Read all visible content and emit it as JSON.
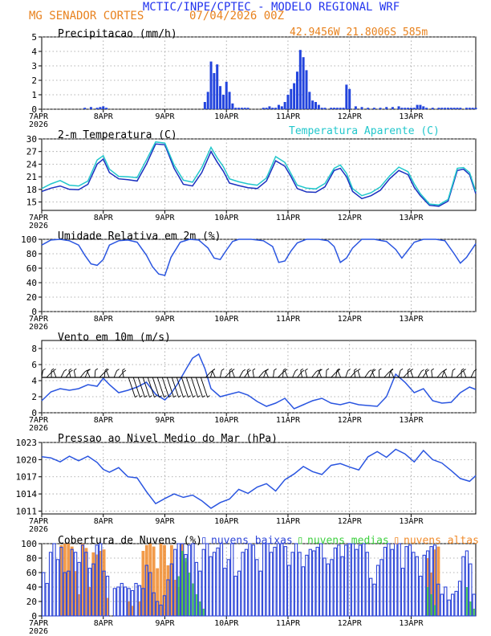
{
  "header": {
    "title": "MCTIC/INPE/CPTEC - MODELO REGIONAL WRF",
    "location": "MG SENADOR CORTES",
    "run": "07/04/2026 00Z",
    "coords": "42.9456W 21.8006S 585m"
  },
  "colors": {
    "precip": "#2244dd",
    "temp": "#1a2fbf",
    "apparent": "#22c7cc",
    "humidity": "#2a55e0",
    "wind": "#2a55e0",
    "pressure": "#2a55e0",
    "cloud_low": "#2d45d8",
    "cloud_mid": "#3fd040",
    "cloud_high": "#f08a2a",
    "title_blue": "#2233ee",
    "title_orange": "#e8821e",
    "grid": "#9a9a9a"
  },
  "x_axis": {
    "labels": [
      "7APR",
      "8APR",
      "9APR",
      "10APR",
      "11APR",
      "12APR",
      "13APR"
    ],
    "year": "2026"
  },
  "chart_data": [
    {
      "type": "bar",
      "title": "Precipitacao (mm/h)",
      "yticks": [
        "0",
        "1",
        "2",
        "3",
        "4",
        "5"
      ],
      "ylim": [
        0,
        5
      ],
      "x": [
        0.7,
        0.8,
        0.9,
        0.95,
        1.0,
        1.05,
        2.65,
        2.7,
        2.75,
        2.8,
        2.85,
        2.9,
        2.95,
        3.0,
        3.05,
        3.1,
        3.15,
        3.2,
        3.25,
        3.3,
        3.35,
        3.6,
        3.65,
        3.7,
        3.75,
        3.8,
        3.85,
        3.9,
        3.95,
        4.0,
        4.05,
        4.1,
        4.15,
        4.2,
        4.25,
        4.3,
        4.35,
        4.4,
        4.45,
        4.5,
        4.55,
        4.6,
        4.7,
        4.75,
        4.8,
        4.85,
        4.9,
        4.95,
        5.0,
        5.1,
        5.2,
        5.3,
        5.4,
        5.5,
        5.6,
        5.7,
        5.8,
        5.85,
        5.9,
        5.95,
        6.0,
        6.05,
        6.1,
        6.15,
        6.2,
        6.25,
        6.35,
        6.45,
        6.5,
        6.55,
        6.6,
        6.65,
        6.7,
        6.75,
        6.8,
        6.9,
        6.95,
        7.0,
        7.05
      ],
      "values": [
        0.1,
        0.15,
        0.1,
        0.15,
        0.2,
        0.1,
        0.5,
        1.2,
        3.3,
        2.5,
        3.1,
        1.6,
        1.0,
        1.9,
        1.2,
        0.4,
        0.1,
        0.1,
        0.1,
        0.1,
        0.1,
        0.1,
        0.1,
        0.2,
        0.1,
        0.1,
        0.3,
        0.2,
        0.5,
        1.0,
        1.4,
        1.8,
        2.6,
        4.1,
        3.6,
        2.7,
        1.2,
        0.6,
        0.5,
        0.3,
        0.1,
        0.1,
        0.1,
        0.1,
        0.1,
        0.1,
        0.1,
        1.7,
        1.4,
        0.2,
        0.15,
        0.1,
        0.1,
        0.1,
        0.15,
        0.15,
        0.2,
        0.1,
        0.1,
        0.1,
        0.1,
        0.1,
        0.3,
        0.3,
        0.2,
        0.1,
        0.1,
        0.1,
        0.1,
        0.1,
        0.1,
        0.1,
        0.1,
        0.1,
        0.1,
        0.1,
        0.1,
        0.1,
        0.1
      ],
      "xlabel": "",
      "ylabel": ""
    },
    {
      "type": "line",
      "title": "2-m Temperatura (C)",
      "legend": "Temperatura Aparente (C)",
      "yticks": [
        "15",
        "18",
        "21",
        "24",
        "27",
        "30"
      ],
      "ylim": [
        13,
        30
      ],
      "x": [
        0,
        0.15,
        0.3,
        0.45,
        0.6,
        0.75,
        0.9,
        1.0,
        1.1,
        1.25,
        1.4,
        1.55,
        1.7,
        1.85,
        2.0,
        2.15,
        2.3,
        2.45,
        2.6,
        2.75,
        2.85,
        2.95,
        3.05,
        3.2,
        3.35,
        3.5,
        3.65,
        3.8,
        3.95,
        4.05,
        4.15,
        4.3,
        4.45,
        4.6,
        4.75,
        4.85,
        4.95,
        5.05,
        5.2,
        5.35,
        5.5,
        5.65,
        5.8,
        5.95,
        6.05,
        6.15,
        6.3,
        6.45,
        6.6,
        6.75,
        6.85,
        6.95,
        7.05
      ],
      "series": [
        {
          "name": "",
          "values": [
            17.5,
            18.3,
            18.8,
            18.0,
            17.9,
            19.2,
            24.0,
            25.2,
            22.0,
            20.5,
            20.3,
            20.0,
            24.0,
            28.8,
            28.6,
            23.0,
            19.2,
            18.8,
            22.0,
            27.0,
            24.5,
            22.3,
            19.5,
            18.9,
            18.4,
            18.2,
            20.0,
            24.8,
            23.5,
            21.0,
            18.2,
            17.4,
            17.3,
            18.6,
            22.5,
            23.0,
            21.0,
            17.5,
            15.8,
            16.5,
            17.8,
            20.5,
            22.5,
            21.5,
            18.5,
            16.5,
            14.2,
            14.0,
            15.2,
            22.5,
            22.8,
            21.5,
            17.0
          ]
        },
        {
          "name": "Temperatura Aparente (C)",
          "values": [
            18.2,
            19.3,
            20.1,
            19.0,
            18.8,
            20.0,
            25.0,
            26.0,
            22.8,
            21.1,
            21.0,
            20.8,
            25.0,
            29.3,
            29.0,
            23.8,
            20.2,
            19.7,
            23.2,
            28.0,
            25.5,
            23.4,
            20.5,
            19.8,
            19.3,
            19.0,
            20.7,
            25.8,
            24.4,
            21.7,
            19.0,
            18.3,
            18.1,
            19.4,
            23.0,
            23.8,
            21.8,
            18.2,
            16.5,
            17.2,
            18.6,
            21.2,
            23.3,
            22.2,
            19.3,
            17.0,
            14.5,
            14.3,
            15.6,
            23.0,
            23.2,
            22.0,
            17.5
          ]
        }
      ],
      "xlabel": "",
      "ylabel": ""
    },
    {
      "type": "line",
      "title": "Umidade Relativa em 2m (%)",
      "yticks": [
        "0",
        "20",
        "40",
        "60",
        "80",
        "100"
      ],
      "ylim": [
        0,
        100
      ],
      "x": [
        0,
        0.15,
        0.3,
        0.45,
        0.6,
        0.7,
        0.8,
        0.9,
        1.0,
        1.1,
        1.25,
        1.4,
        1.55,
        1.7,
        1.8,
        1.9,
        2.0,
        2.1,
        2.25,
        2.4,
        2.55,
        2.7,
        2.8,
        2.9,
        3.0,
        3.1,
        3.2,
        3.4,
        3.6,
        3.75,
        3.85,
        3.95,
        4.05,
        4.15,
        4.3,
        4.5,
        4.65,
        4.75,
        4.85,
        4.95,
        5.05,
        5.2,
        5.4,
        5.6,
        5.75,
        5.85,
        5.95,
        6.05,
        6.2,
        6.4,
        6.55,
        6.7,
        6.8,
        6.9,
        7.05
      ],
      "series": [
        {
          "name": "",
          "values": [
            92,
            99,
            100,
            98,
            92,
            78,
            66,
            64,
            72,
            92,
            98,
            99,
            96,
            78,
            62,
            52,
            50,
            75,
            96,
            100,
            99,
            88,
            74,
            72,
            85,
            97,
            100,
            100,
            98,
            90,
            68,
            70,
            84,
            95,
            100,
            100,
            98,
            90,
            68,
            74,
            88,
            100,
            100,
            97,
            86,
            74,
            85,
            96,
            100,
            100,
            98,
            80,
            67,
            75,
            94
          ]
        }
      ],
      "xlabel": "",
      "ylabel": ""
    },
    {
      "type": "line",
      "title": "Vento em 10m (m/s)",
      "yticks": [
        "0",
        "2",
        "4",
        "6",
        "8"
      ],
      "ylim": [
        0,
        9
      ],
      "x": [
        0,
        0.15,
        0.3,
        0.45,
        0.6,
        0.75,
        0.9,
        1.0,
        1.1,
        1.25,
        1.4,
        1.55,
        1.7,
        1.85,
        2.0,
        2.1,
        2.2,
        2.35,
        2.45,
        2.55,
        2.65,
        2.75,
        2.9,
        3.05,
        3.2,
        3.35,
        3.5,
        3.65,
        3.8,
        3.95,
        4.1,
        4.25,
        4.4,
        4.55,
        4.7,
        4.85,
        5.0,
        5.15,
        5.3,
        5.45,
        5.6,
        5.75,
        5.9,
        6.05,
        6.2,
        6.35,
        6.5,
        6.65,
        6.8,
        6.95,
        7.05
      ],
      "series": [
        {
          "name": "",
          "values": [
            1.5,
            2.6,
            3.0,
            2.8,
            3.0,
            3.5,
            3.3,
            4.3,
            3.5,
            2.5,
            2.8,
            3.2,
            3.8,
            2.3,
            1.6,
            2.4,
            3.5,
            5.5,
            6.8,
            7.3,
            5.5,
            3.0,
            2.0,
            2.3,
            2.6,
            2.2,
            1.4,
            0.8,
            1.2,
            1.8,
            0.5,
            1.0,
            1.5,
            1.8,
            1.2,
            1.0,
            1.3,
            1.0,
            0.9,
            0.8,
            2.0,
            4.8,
            3.8,
            2.5,
            3.0,
            1.5,
            1.2,
            1.3,
            2.5,
            3.2,
            2.9
          ]
        }
      ],
      "xlabel": "",
      "ylabel": ""
    },
    {
      "type": "line",
      "title": "Pressao ao Nivel Medio do Mar (hPa)",
      "yticks": [
        "1011",
        "1014",
        "1017",
        "1020",
        "1023"
      ],
      "ylim": [
        1010.5,
        1023
      ],
      "x": [
        0,
        0.15,
        0.3,
        0.45,
        0.6,
        0.75,
        0.9,
        1.0,
        1.1,
        1.25,
        1.4,
        1.55,
        1.7,
        1.85,
        2.0,
        2.15,
        2.3,
        2.45,
        2.6,
        2.75,
        2.9,
        3.05,
        3.2,
        3.35,
        3.5,
        3.65,
        3.8,
        3.95,
        4.1,
        4.25,
        4.4,
        4.55,
        4.7,
        4.85,
        5.0,
        5.15,
        5.3,
        5.45,
        5.6,
        5.75,
        5.9,
        6.05,
        6.2,
        6.35,
        6.5,
        6.65,
        6.8,
        6.95,
        7.05
      ],
      "series": [
        {
          "name": "",
          "values": [
            1020.5,
            1020.3,
            1019.6,
            1020.6,
            1019.8,
            1020.6,
            1019.5,
            1018.3,
            1017.8,
            1018.6,
            1017.0,
            1016.8,
            1014.4,
            1012.3,
            1013.2,
            1014.0,
            1013.4,
            1013.8,
            1012.8,
            1011.5,
            1012.5,
            1013.1,
            1014.8,
            1014.1,
            1015.2,
            1015.8,
            1014.5,
            1016.5,
            1017.5,
            1018.8,
            1017.9,
            1017.4,
            1019.0,
            1019.3,
            1018.7,
            1018.2,
            1020.5,
            1021.4,
            1020.4,
            1021.8,
            1021.0,
            1019.6,
            1021.6,
            1020.0,
            1019.4,
            1018.1,
            1016.7,
            1016.2,
            1017.2
          ]
        }
      ],
      "xlabel": "",
      "ylabel": ""
    },
    {
      "type": "bar",
      "title": "Cobertura de Nuvens (%)",
      "yticks": [
        "0",
        "20",
        "40",
        "60",
        "80",
        "100"
      ],
      "ylim": [
        0,
        100
      ],
      "series": [
        {
          "name": "nuvens baixas",
          "values": [
            60,
            45,
            88,
            100,
            78,
            95,
            60,
            62,
            92,
            88,
            74,
            98,
            88,
            66,
            72,
            98,
            100,
            62,
            55,
            0,
            38,
            40,
            45,
            40,
            38,
            35,
            45,
            42,
            38,
            70,
            60,
            32,
            20,
            15,
            28,
            50,
            72,
            92,
            100,
            100,
            85,
            98,
            100,
            74,
            62,
            92,
            100,
            82,
            88,
            94,
            100,
            66,
            78,
            100,
            55,
            62,
            88,
            92,
            100,
            98,
            78,
            62,
            100,
            100,
            88,
            95,
            100,
            100,
            96,
            70,
            88,
            100,
            88,
            68,
            84,
            92,
            90,
            95,
            100,
            80,
            72,
            78,
            94,
            98,
            82,
            98,
            100,
            100,
            92,
            98,
            100,
            88,
            52,
            44,
            70,
            78,
            95,
            100,
            92,
            100,
            100,
            66,
            96,
            98,
            88,
            82,
            55,
            84,
            90,
            96,
            98,
            44,
            30,
            40,
            22,
            30,
            34,
            48,
            82,
            90,
            72,
            30
          ]
        },
        {
          "name": "nuvens medias",
          "values": [
            0,
            0,
            0,
            0,
            0,
            0,
            0,
            0,
            0,
            0,
            0,
            0,
            0,
            0,
            0,
            0,
            0,
            0,
            0,
            0,
            0,
            0,
            0,
            0,
            0,
            0,
            0,
            0,
            0,
            0,
            0,
            0,
            0,
            0,
            0,
            0,
            0,
            0,
            55,
            90,
            80,
            60,
            45,
            30,
            20,
            10,
            0,
            0,
            0,
            0,
            0,
            0,
            0,
            0,
            0,
            0,
            0,
            0,
            0,
            0,
            0,
            0,
            0,
            0,
            0,
            0,
            0,
            0,
            0,
            0,
            0,
            0,
            0,
            0,
            0,
            0,
            0,
            0,
            0,
            0,
            0,
            0,
            0,
            0,
            0,
            0,
            0,
            0,
            0,
            0,
            0,
            0,
            0,
            0,
            0,
            0,
            0,
            0,
            0,
            0,
            0,
            0,
            0,
            0,
            0,
            0,
            0,
            0,
            40,
            30,
            15,
            0,
            0,
            0,
            0,
            0,
            0,
            0,
            0,
            40,
            20,
            10
          ]
        },
        {
          "name": "nuvens altas",
          "values": [
            0,
            0,
            0,
            0,
            0,
            98,
            100,
            100,
            96,
            62,
            30,
            100,
            94,
            40,
            88,
            85,
            90,
            92,
            25,
            0,
            0,
            0,
            0,
            0,
            20,
            14,
            0,
            20,
            90,
            98,
            100,
            96,
            66,
            100,
            98,
            70,
            98,
            50,
            40,
            100,
            75,
            0,
            0,
            0,
            0,
            0,
            0,
            0,
            0,
            0,
            0,
            0,
            0,
            0,
            0,
            0,
            0,
            0,
            0,
            0,
            0,
            0,
            0,
            0,
            0,
            0,
            0,
            0,
            0,
            0,
            0,
            0,
            0,
            0,
            0,
            0,
            0,
            0,
            0,
            0,
            0,
            0,
            0,
            0,
            0,
            0,
            0,
            0,
            0,
            0,
            0,
            0,
            0,
            0,
            0,
            0,
            0,
            0,
            0,
            0,
            0,
            0,
            0,
            0,
            0,
            0,
            0,
            0,
            80,
            60,
            92,
            96,
            0,
            0,
            0,
            0,
            0,
            0,
            0,
            0,
            0,
            0
          ]
        }
      ],
      "xlabel": "",
      "ylabel": ""
    }
  ]
}
